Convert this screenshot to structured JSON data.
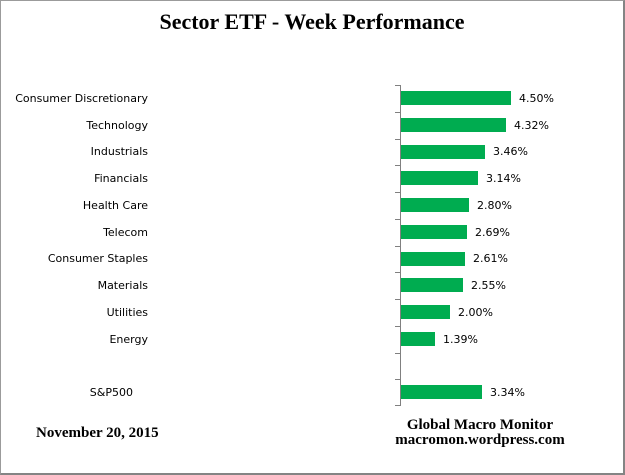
{
  "title": "Sector ETF - Week Performance",
  "footer": {
    "date": "November 20, 2015",
    "source_line1": "Global Macro Monitor",
    "source_line2": "macromon.wordpress.com"
  },
  "colors": {
    "bar": "#00AC50",
    "axis": "#808080",
    "text": "#000000",
    "background": "#ffffff"
  },
  "chart_data": {
    "type": "bar",
    "orientation": "horizontal",
    "title": "Sector ETF - Week Performance",
    "categories": [
      "Consumer Discretionary",
      "Technology",
      "Industrials",
      "Financials",
      "Health Care",
      "Telecom",
      "Consumer Staples",
      "Materials",
      "Utilities",
      "Energy",
      "S&P500"
    ],
    "values": [
      4.5,
      4.32,
      3.46,
      3.14,
      2.8,
      2.69,
      2.61,
      2.55,
      2.0,
      1.39,
      3.34
    ],
    "data_labels": [
      "4.50%",
      "4.32%",
      "3.46%",
      "3.14%",
      "2.80%",
      "2.69%",
      "2.61%",
      "2.55%",
      "2.00%",
      "1.39%",
      "3.34%"
    ],
    "separator_before_index": 10,
    "xlim": [
      0,
      5
    ],
    "xlabel": "",
    "ylabel": "",
    "grid": false,
    "legend": false,
    "bar_color": "#00AC50",
    "axis_color": "#808080"
  }
}
